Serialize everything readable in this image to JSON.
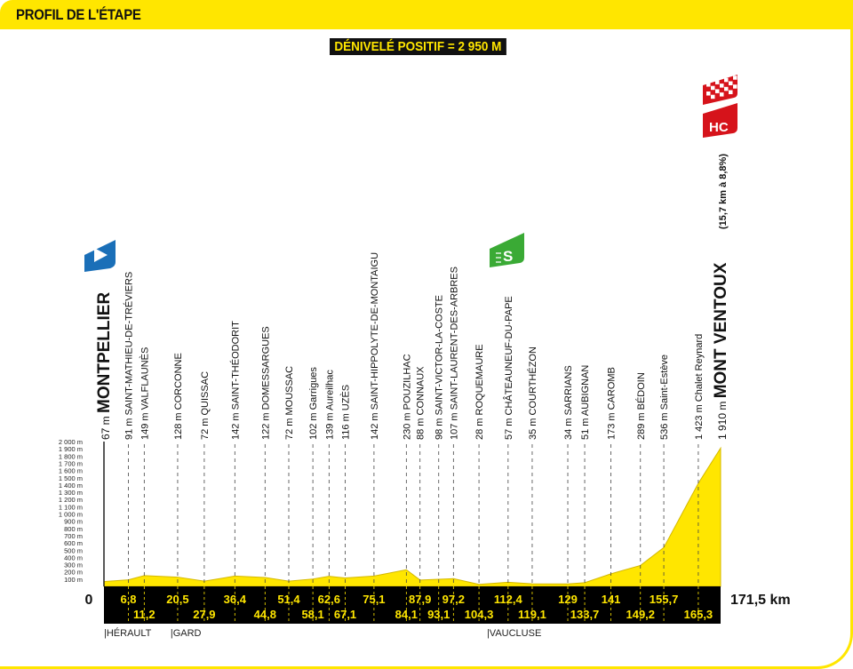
{
  "header": {
    "title": "PROFIL DE L'ÉTAPE"
  },
  "elevation_gain": "DÉNIVELÉ POSITIF = 2 950 M",
  "colors": {
    "profile_fill": "#ffe600",
    "profile_stroke": "#d4b800",
    "km_band": "#000000",
    "km_text": "#ffe600",
    "sprint": "#3aaa35",
    "start": "#1a6fb8",
    "climb": "#d6131b"
  },
  "icons": {
    "start": "start-flag-icon",
    "sprint": "intermediate-sprint-icon",
    "finish": "finish-checkered-flag-icon",
    "climb": "hc-climb-category-icon"
  },
  "climb": {
    "category": "HC",
    "detail": "(15,7 km à 8,8%)"
  },
  "chart_data": {
    "type": "area",
    "xlabel": "",
    "ylabel": "",
    "x_unit": "km",
    "xlim": [
      0,
      171.5
    ],
    "ylim": [
      0,
      2000
    ],
    "y_ticks": [
      "100 m",
      "200 m",
      "300 m",
      "400 m",
      "500 m",
      "600 m",
      "700 m",
      "800 m",
      "900 m",
      "1 000 m",
      "1 100 m",
      "1 200 m",
      "1 300 m",
      "1 400 m",
      "1 500 m",
      "1 600 m",
      "1 700 m",
      "1 800 m",
      "1 900 m",
      "2 000 m"
    ],
    "x_start_label": "0",
    "x_end_label": "171,5 km",
    "waypoints": [
      {
        "km": 0,
        "km_label": "",
        "alt": 67,
        "label": "67 m MONTPELLIER",
        "major": true
      },
      {
        "km": 6.8,
        "km_label": "6,8",
        "alt": 91,
        "label": "91 m SAINT-MATHIEU-DE-TRÉVIERS"
      },
      {
        "km": 11.2,
        "km_label": "11,2",
        "alt": 149,
        "label": "149 m VALFLAUNÈS"
      },
      {
        "km": 20.5,
        "km_label": "20,5",
        "alt": 128,
        "label": "128 m CORCONNE"
      },
      {
        "km": 27.9,
        "km_label": "27,9",
        "alt": 72,
        "label": "72 m QUISSAC"
      },
      {
        "km": 36.4,
        "km_label": "36,4",
        "alt": 142,
        "label": "142 m SAINT-THÉODORIT"
      },
      {
        "km": 44.8,
        "km_label": "44,8",
        "alt": 122,
        "label": "122 m DOMESSARGUES"
      },
      {
        "km": 51.4,
        "km_label": "51,4",
        "alt": 72,
        "label": "72 m MOUSSAC"
      },
      {
        "km": 58.1,
        "km_label": "58,1",
        "alt": 102,
        "label": "102 m Garrigues"
      },
      {
        "km": 62.6,
        "km_label": "62,6",
        "alt": 139,
        "label": "139 m Aureilhac"
      },
      {
        "km": 67.1,
        "km_label": "67,1",
        "alt": 116,
        "label": "116 m UZÈS"
      },
      {
        "km": 75.1,
        "km_label": "75,1",
        "alt": 142,
        "label": "142 m SAINT-HIPPOLYTE-DE-MONTAIGU"
      },
      {
        "km": 84.1,
        "km_label": "84,1",
        "alt": 230,
        "label": "230 m POUZILHAC"
      },
      {
        "km": 87.9,
        "km_label": "87,9",
        "alt": 88,
        "label": "88 m CONNAUX"
      },
      {
        "km": 93.1,
        "km_label": "93,1",
        "alt": 98,
        "label": "98 m SAINT-VICTOR-LA-COSTE"
      },
      {
        "km": 97.2,
        "km_label": "97,2",
        "alt": 107,
        "label": "107 m SAINT-LAURENT-DES-ARBRES"
      },
      {
        "km": 104.3,
        "km_label": "104,3",
        "alt": 28,
        "label": "28 m ROQUEMAURE"
      },
      {
        "km": 112.4,
        "km_label": "112,4",
        "alt": 57,
        "label": "57 m CHÂTEAUNEUF-DU-PAPE",
        "sprint": true
      },
      {
        "km": 119.1,
        "km_label": "119,1",
        "alt": 35,
        "label": "35 m COURTHÉZON"
      },
      {
        "km": 129,
        "km_label": "129",
        "alt": 34,
        "label": "34 m SARRIANS"
      },
      {
        "km": 133.7,
        "km_label": "133,7",
        "alt": 51,
        "label": "51 m AUBIGNAN"
      },
      {
        "km": 141,
        "km_label": "141",
        "alt": 173,
        "label": "173 m CAROMB"
      },
      {
        "km": 149.2,
        "km_label": "149,2",
        "alt": 289,
        "label": "289 m BÉDOIN"
      },
      {
        "km": 155.7,
        "km_label": "155,7",
        "alt": 536,
        "label": "536 m Saint-Estève"
      },
      {
        "km": 165.3,
        "km_label": "165,3",
        "alt": 1423,
        "label": "1 423 m Chalet Reynard"
      },
      {
        "km": 171.5,
        "km_label": "",
        "alt": 1910,
        "label": "1 910 m MONT VENTOUX",
        "major": true,
        "finish": true
      }
    ],
    "regions": [
      {
        "km": 0,
        "label": "|HÉRAULT"
      },
      {
        "km": 18.5,
        "label": "|GARD"
      },
      {
        "km": 106.5,
        "label": "|VAUCLUSE"
      }
    ]
  }
}
